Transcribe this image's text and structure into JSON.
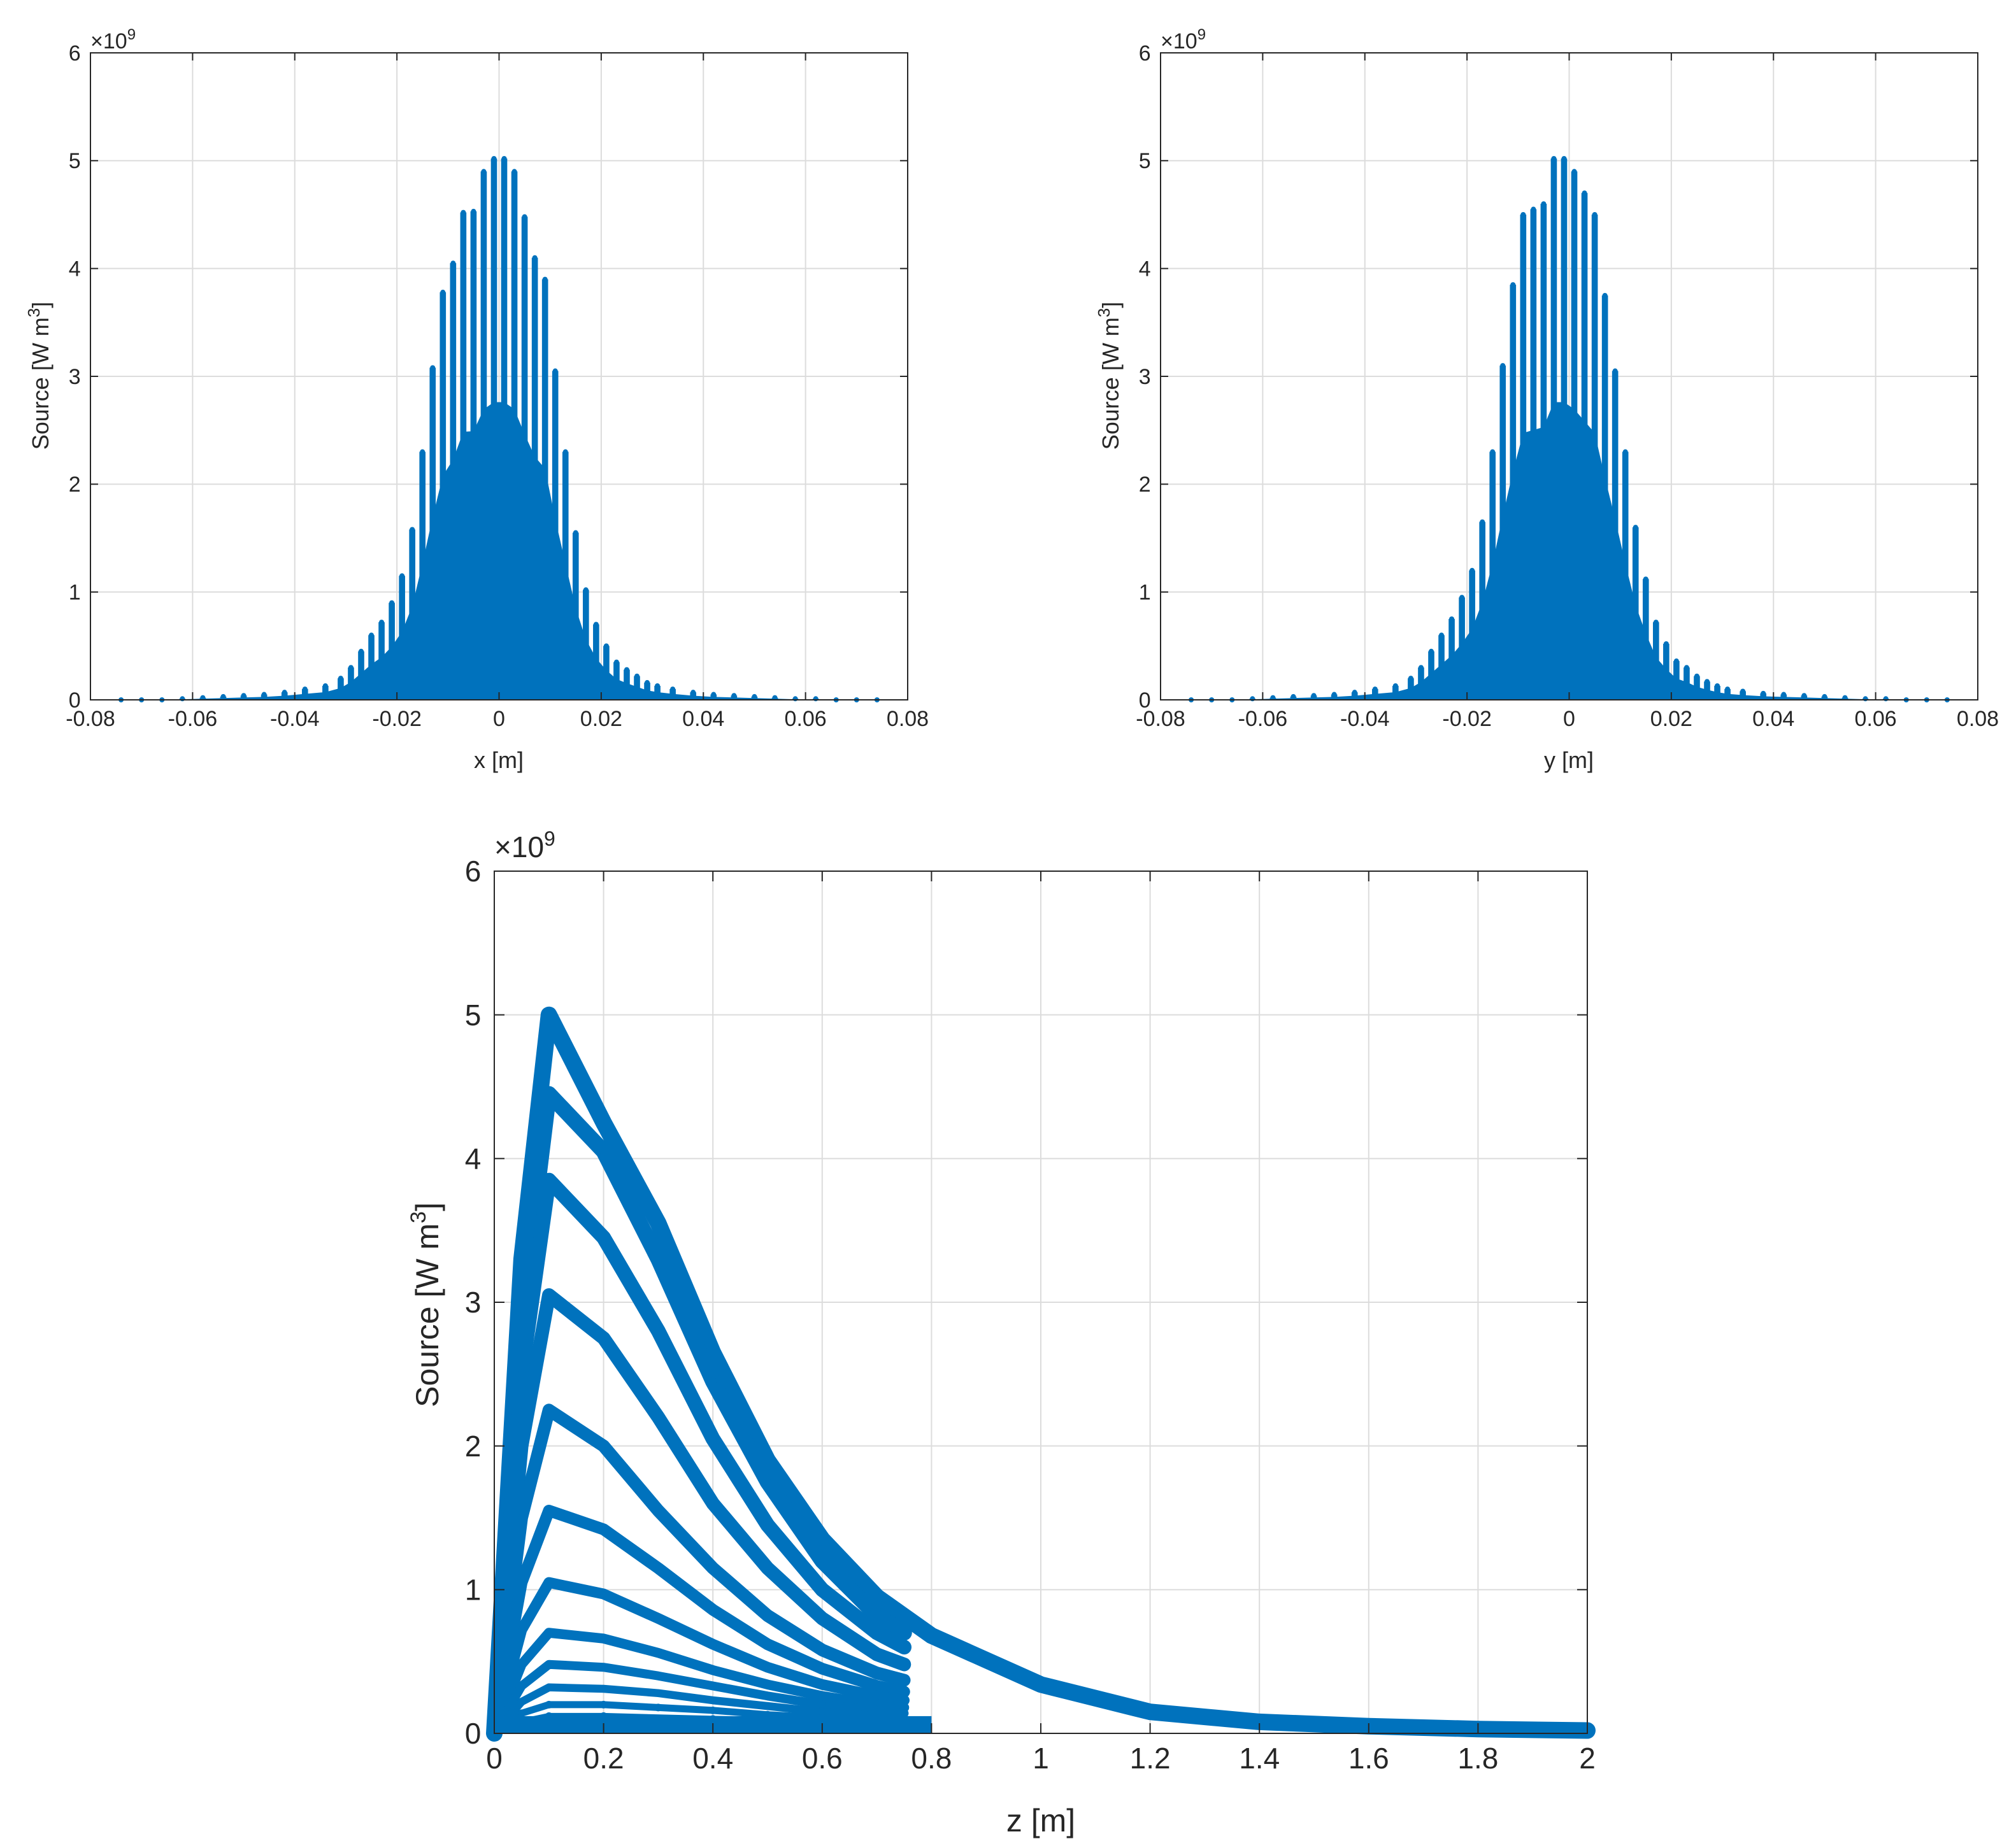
{
  "colors": {
    "series": "#0072BD",
    "axes": "#262626",
    "grid": "#dcdcdc",
    "background": "#ffffff"
  },
  "chart_data": [
    {
      "id": "x-profile",
      "type": "scatter",
      "xlabel": "x [m]",
      "ylabel_main": "Source [W m",
      "ylabel_sup": "3",
      "ylabel_end": "]",
      "y_exponent": "×10",
      "y_exponent_power": "9",
      "xlim": [
        -0.08,
        0.08
      ],
      "ylim": [
        0,
        6
      ],
      "xticks": [
        -0.08,
        -0.06,
        -0.04,
        -0.02,
        0,
        0.02,
        0.04,
        0.06,
        0.08
      ],
      "xtick_labels": [
        "-0.08",
        "-0.06",
        "-0.04",
        "-0.02",
        "0",
        "0.02",
        "0.04",
        "0.06",
        "0.08"
      ],
      "yticks": [
        0,
        1,
        2,
        3,
        4,
        5,
        6
      ],
      "ytick_labels": [
        "0",
        "1",
        "2",
        "3",
        "4",
        "5",
        "6"
      ],
      "grid": true,
      "legend": "none",
      "series": [
        {
          "x": [
            -0.074,
            -0.07,
            -0.066,
            -0.062,
            -0.058,
            -0.054,
            -0.05,
            -0.046,
            -0.042,
            -0.038,
            -0.034,
            -0.031,
            -0.029,
            -0.027,
            -0.025,
            -0.023,
            -0.021,
            -0.019,
            -0.017,
            -0.015,
            -0.013,
            -0.011,
            -0.009,
            -0.007,
            -0.005,
            -0.003,
            -0.001,
            0.001,
            0.003,
            0.005,
            0.007,
            0.009,
            0.011,
            0.013,
            0.015,
            0.017,
            0.019,
            0.021,
            0.023,
            0.025,
            0.027,
            0.029,
            0.031,
            0.034,
            0.038,
            0.042,
            0.046,
            0.05,
            0.054,
            0.058,
            0.062,
            0.066,
            0.07,
            0.074
          ],
          "y": [
            0.0,
            0.0,
            0.0,
            0.01,
            0.02,
            0.03,
            0.04,
            0.05,
            0.07,
            0.1,
            0.13,
            0.2,
            0.3,
            0.45,
            0.6,
            0.72,
            0.9,
            1.15,
            1.58,
            2.3,
            3.08,
            3.78,
            4.05,
            4.52,
            4.53,
            4.9,
            5.02,
            5.02,
            4.9,
            4.48,
            4.1,
            3.9,
            3.05,
            2.3,
            1.55,
            1.02,
            0.7,
            0.5,
            0.35,
            0.28,
            0.22,
            0.16,
            0.13,
            0.1,
            0.07,
            0.05,
            0.04,
            0.03,
            0.02,
            0.01,
            0.01,
            0.0,
            0.0,
            0.0
          ]
        }
      ]
    },
    {
      "id": "y-profile",
      "type": "scatter",
      "xlabel": "y [m]",
      "ylabel_main": "Source [W m",
      "ylabel_sup": "3",
      "ylabel_end": "]",
      "y_exponent": "×10",
      "y_exponent_power": "9",
      "xlim": [
        -0.08,
        0.08
      ],
      "ylim": [
        0,
        6
      ],
      "xticks": [
        -0.08,
        -0.06,
        -0.04,
        -0.02,
        0,
        0.02,
        0.04,
        0.06,
        0.08
      ],
      "xtick_labels": [
        "-0.08",
        "-0.06",
        "-0.04",
        "-0.02",
        "0",
        "0.02",
        "0.04",
        "0.06",
        "0.08"
      ],
      "yticks": [
        0,
        1,
        2,
        3,
        4,
        5,
        6
      ],
      "ytick_labels": [
        "0",
        "1",
        "2",
        "3",
        "4",
        "5",
        "6"
      ],
      "grid": true,
      "legend": "none",
      "series": [
        {
          "x": [
            -0.074,
            -0.07,
            -0.066,
            -0.062,
            -0.058,
            -0.054,
            -0.05,
            -0.046,
            -0.042,
            -0.038,
            -0.034,
            -0.031,
            -0.029,
            -0.027,
            -0.025,
            -0.023,
            -0.021,
            -0.019,
            -0.017,
            -0.015,
            -0.013,
            -0.011,
            -0.009,
            -0.007,
            -0.005,
            -0.003,
            -0.001,
            0.001,
            0.003,
            0.005,
            0.007,
            0.009,
            0.011,
            0.013,
            0.015,
            0.017,
            0.019,
            0.021,
            0.023,
            0.025,
            0.027,
            0.029,
            0.031,
            0.034,
            0.038,
            0.042,
            0.046,
            0.05,
            0.054,
            0.058,
            0.062,
            0.066,
            0.07,
            0.074
          ],
          "y": [
            0.0,
            0.0,
            0.0,
            0.01,
            0.02,
            0.03,
            0.04,
            0.05,
            0.07,
            0.1,
            0.13,
            0.2,
            0.3,
            0.45,
            0.6,
            0.75,
            0.95,
            1.2,
            1.65,
            2.3,
            3.1,
            3.85,
            4.5,
            4.55,
            4.6,
            5.02,
            5.02,
            4.9,
            4.7,
            4.5,
            3.75,
            3.05,
            2.3,
            1.6,
            1.12,
            0.72,
            0.52,
            0.36,
            0.3,
            0.22,
            0.17,
            0.13,
            0.1,
            0.08,
            0.06,
            0.05,
            0.04,
            0.03,
            0.02,
            0.01,
            0.01,
            0.0,
            0.0,
            0.0
          ]
        }
      ]
    },
    {
      "id": "z-profile",
      "type": "scatter",
      "xlabel": "z [m]",
      "ylabel_main": "Source [W m",
      "ylabel_sup": "3",
      "ylabel_end": "]",
      "y_exponent": "×10",
      "y_exponent_power": "9",
      "xlim": [
        0,
        2
      ],
      "ylim": [
        0,
        6
      ],
      "xticks": [
        0,
        0.2,
        0.4,
        0.6,
        0.8,
        1,
        1.2,
        1.4,
        1.6,
        1.8,
        2
      ],
      "xtick_labels": [
        "0",
        "0.2",
        "0.4",
        "0.6",
        "0.8",
        "1",
        "1.2",
        "1.4",
        "1.6",
        "1.8",
        "2"
      ],
      "yticks": [
        0,
        1,
        2,
        3,
        4,
        5,
        6
      ],
      "ytick_labels": [
        "0",
        "1",
        "2",
        "3",
        "4",
        "5",
        "6"
      ],
      "grid": true,
      "legend": "none",
      "series": [
        {
          "x": [
            0,
            0.05,
            0.1,
            0.2,
            0.3,
            0.4,
            0.5,
            0.6,
            0.7,
            0.8,
            1.0,
            1.2,
            1.4,
            1.6,
            1.8,
            2.0
          ],
          "y": [
            0.0,
            3.3,
            5.0,
            4.25,
            3.55,
            2.65,
            1.9,
            1.35,
            0.95,
            0.68,
            0.34,
            0.15,
            0.08,
            0.05,
            0.03,
            0.02
          ]
        },
        {
          "x": [
            0,
            0.05,
            0.1,
            0.2,
            0.3,
            0.4,
            0.5,
            0.6,
            0.7,
            0.75
          ],
          "y": [
            0.0,
            2.9,
            4.45,
            4.05,
            3.3,
            2.45,
            1.75,
            1.2,
            0.82,
            0.7
          ]
        },
        {
          "x": [
            0,
            0.05,
            0.1,
            0.2,
            0.3,
            0.4,
            0.5,
            0.6,
            0.7,
            0.75
          ],
          "y": [
            0.0,
            2.5,
            3.85,
            3.45,
            2.8,
            2.05,
            1.45,
            1.0,
            0.7,
            0.6
          ]
        },
        {
          "x": [
            0,
            0.05,
            0.1,
            0.2,
            0.3,
            0.4,
            0.5,
            0.6,
            0.7,
            0.75
          ],
          "y": [
            0.0,
            2.0,
            3.05,
            2.75,
            2.2,
            1.6,
            1.15,
            0.8,
            0.55,
            0.48
          ]
        },
        {
          "x": [
            0,
            0.05,
            0.1,
            0.2,
            0.3,
            0.4,
            0.5,
            0.6,
            0.7,
            0.75
          ],
          "y": [
            0.0,
            1.5,
            2.25,
            2.0,
            1.55,
            1.15,
            0.82,
            0.58,
            0.42,
            0.37
          ]
        },
        {
          "x": [
            0,
            0.05,
            0.1,
            0.2,
            0.3,
            0.4,
            0.5,
            0.6,
            0.7,
            0.75
          ],
          "y": [
            0.0,
            1.05,
            1.55,
            1.42,
            1.15,
            0.86,
            0.62,
            0.45,
            0.33,
            0.29
          ]
        },
        {
          "x": [
            0,
            0.05,
            0.1,
            0.2,
            0.3,
            0.4,
            0.5,
            0.6,
            0.7,
            0.75
          ],
          "y": [
            0.0,
            0.72,
            1.05,
            0.97,
            0.8,
            0.62,
            0.46,
            0.34,
            0.26,
            0.23
          ]
        },
        {
          "x": [
            0,
            0.05,
            0.1,
            0.2,
            0.3,
            0.4,
            0.5,
            0.6,
            0.7,
            0.75
          ],
          "y": [
            0.0,
            0.48,
            0.7,
            0.66,
            0.56,
            0.44,
            0.34,
            0.26,
            0.2,
            0.18
          ]
        },
        {
          "x": [
            0,
            0.05,
            0.1,
            0.2,
            0.3,
            0.4,
            0.5,
            0.6,
            0.7,
            0.75
          ],
          "y": [
            0.0,
            0.33,
            0.48,
            0.46,
            0.4,
            0.33,
            0.26,
            0.2,
            0.16,
            0.14
          ]
        },
        {
          "x": [
            0,
            0.05,
            0.1,
            0.2,
            0.3,
            0.4,
            0.5,
            0.6,
            0.7,
            0.75
          ],
          "y": [
            0.0,
            0.22,
            0.32,
            0.31,
            0.28,
            0.23,
            0.19,
            0.15,
            0.12,
            0.11
          ]
        },
        {
          "x": [
            0,
            0.05,
            0.1,
            0.2,
            0.3,
            0.4,
            0.5,
            0.6,
            0.7,
            0.75
          ],
          "y": [
            0.0,
            0.14,
            0.2,
            0.2,
            0.18,
            0.16,
            0.13,
            0.11,
            0.09,
            0.08
          ]
        },
        {
          "x": [
            0,
            0.05,
            0.1,
            0.2,
            0.4,
            0.6,
            0.75
          ],
          "y": [
            0.0,
            0.08,
            0.12,
            0.12,
            0.1,
            0.08,
            0.06
          ]
        }
      ]
    }
  ]
}
